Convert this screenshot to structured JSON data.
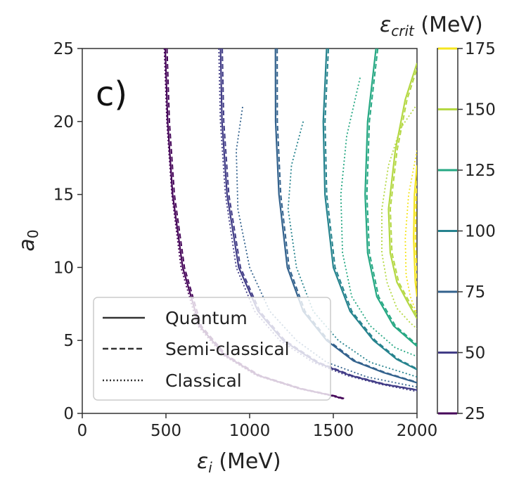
{
  "chart_data": {
    "type": "line",
    "panel_label": "c)",
    "xlabel": "ε_i (MeV)",
    "xlabel_main": "ε",
    "xlabel_sub": "i",
    "xlabel_unit": " (MeV)",
    "ylabel": "a_0",
    "ylabel_main": "a",
    "ylabel_sub": "0",
    "xlim": [
      0,
      2000
    ],
    "ylim": [
      0,
      25
    ],
    "xticks": [
      0,
      500,
      1000,
      1500,
      2000
    ],
    "yticks": [
      0,
      5,
      10,
      15,
      20,
      25
    ],
    "grid": false,
    "legend": {
      "placement": "lower-left",
      "entries": [
        {
          "label": "Quantum",
          "style": "solid"
        },
        {
          "label": "Semi-classical",
          "style": "dashed"
        },
        {
          "label": "Classical",
          "style": "dotted"
        }
      ]
    },
    "colorbar": {
      "title": "ε_crit (MeV)",
      "title_main": "ε",
      "title_sub": "crit",
      "title_unit": " (MeV)",
      "range": [
        25,
        175
      ],
      "ticks": [
        25,
        50,
        75,
        100,
        125,
        150,
        175
      ],
      "levels": [
        {
          "value": 25,
          "color": "#46065a"
        },
        {
          "value": 50,
          "color": "#423d87"
        },
        {
          "value": 75,
          "color": "#33628d"
        },
        {
          "value": 100,
          "color": "#26838e"
        },
        {
          "value": 125,
          "color": "#26a883"
        },
        {
          "value": 150,
          "color": "#b4d843"
        },
        {
          "value": 175,
          "color": "#f5e51f"
        }
      ]
    },
    "series": [
      {
        "level": 25,
        "color": "#46065a",
        "quantum": {
          "x": [
            496,
            510,
            540,
            600,
            700,
            850,
            1050,
            1300,
            1500,
            1560
          ],
          "y": [
            25,
            20,
            15,
            10,
            6,
            4,
            2.6,
            1.7,
            1.2,
            1.0
          ]
        },
        "classical": {
          "x": [
            490,
            505,
            535,
            590,
            690,
            840,
            1040,
            1290,
            1490,
            1550
          ],
          "y": [
            25,
            20,
            15,
            10,
            6,
            4,
            2.6,
            1.7,
            1.2,
            1.0
          ]
        }
      },
      {
        "level": 50,
        "color": "#423d87",
        "quantum": {
          "x": [
            826,
            835,
            865,
            935,
            1050,
            1200,
            1400,
            1600,
            1800,
            2000
          ],
          "y": [
            25,
            20,
            15,
            10,
            7,
            5,
            3.5,
            2.6,
            2.0,
            1.6
          ]
        },
        "classical": {
          "x": [
            816,
            825,
            855,
            920,
            1030,
            1180,
            1380,
            1580,
            1780,
            2000
          ],
          "y": [
            25,
            20,
            15,
            10,
            7,
            5,
            3.5,
            2.6,
            2.0,
            1.5
          ]
        }
      },
      {
        "level": 75,
        "color": "#33628d",
        "quantum": {
          "x": [
            1154,
            1155,
            1175,
            1225,
            1320,
            1460,
            1620,
            1800,
            2000
          ],
          "y": [
            25,
            20,
            15,
            10,
            7,
            5,
            3.6,
            2.8,
            2.1
          ]
        },
        "classical": {
          "x": [
            958,
            920,
            930,
            1000,
            1120,
            1280,
            1460,
            1700,
            2000
          ],
          "y": [
            21,
            18,
            14,
            10,
            7,
            5,
            3.5,
            2.5,
            1.8
          ]
        }
      },
      {
        "level": 100,
        "color": "#26838e",
        "quantum": {
          "x": [
            1460,
            1440,
            1450,
            1500,
            1600,
            1740,
            1880,
            2000
          ],
          "y": [
            25,
            20,
            15,
            10,
            7,
            5,
            3.7,
            3.0
          ]
        },
        "classical": {
          "x": [
            1320,
            1250,
            1230,
            1280,
            1380,
            1530,
            1720,
            2000
          ],
          "y": [
            20,
            17,
            14,
            10,
            7,
            5,
            3.5,
            2.5
          ]
        }
      },
      {
        "level": 125,
        "color": "#26a883",
        "quantum": {
          "x": [
            1755,
            1705,
            1690,
            1705,
            1760,
            1860,
            2000
          ],
          "y": [
            25,
            20,
            15,
            11,
            8,
            6,
            4.6
          ]
        },
        "classical": {
          "x": [
            1660,
            1580,
            1545,
            1555,
            1610,
            1720,
            1870,
            2000
          ],
          "y": [
            23,
            19,
            15,
            11,
            8,
            6,
            4.5,
            3.9
          ]
        }
      },
      {
        "level": 150,
        "color": "#b4d843",
        "quantum": {
          "x": [
            2000,
            1930,
            1870,
            1830,
            1840,
            1880,
            1950,
            2000
          ],
          "y": [
            24,
            21.5,
            18,
            14,
            11,
            9,
            7.5,
            6.5
          ]
        },
        "classical": {
          "x": [
            1990,
            1900,
            1830,
            1790,
            1790,
            1820,
            1880,
            1960,
            2000
          ],
          "y": [
            21,
            19.5,
            17,
            14,
            11,
            9,
            7.2,
            6.2,
            5.8
          ]
        }
      },
      {
        "level": 175,
        "color": "#f5e51f",
        "quantum": {
          "x": [
            2000,
            1985,
            1980,
            1990,
            2000
          ],
          "y": [
            17,
            15,
            12,
            9,
            8
          ]
        },
        "classical": {
          "x": [
            2000,
            1950,
            1930,
            1935,
            1960,
            2000
          ],
          "y": [
            18,
            15,
            12,
            9.5,
            8,
            6.8
          ]
        }
      }
    ]
  }
}
